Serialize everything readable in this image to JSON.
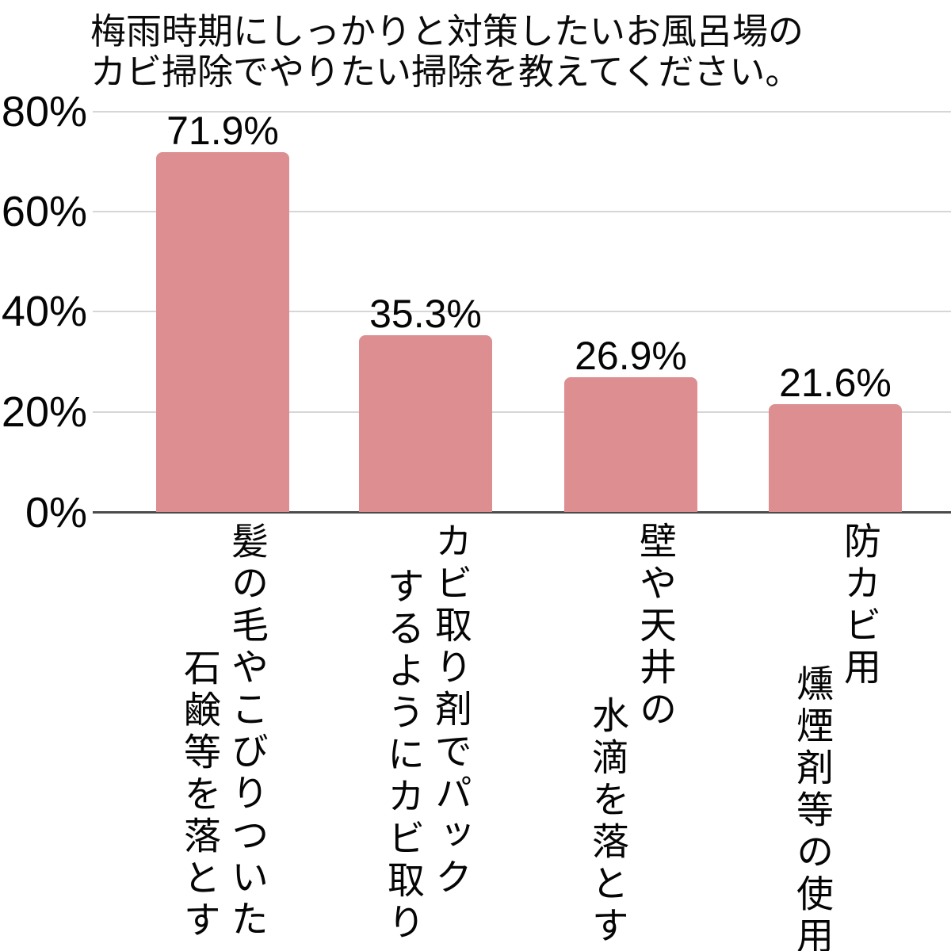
{
  "title": {
    "lines": [
      "梅雨時期にしっかりと対策したいお風呂場の",
      "カビ掃除でやりたい掃除を教えてください。"
    ],
    "full": "梅雨時期にしっかりと対策したいお風呂場のカビ掃除でやりたい掃除を教えてください。"
  },
  "y_axis": {
    "ticks": [
      "80%",
      "60%",
      "40%",
      "20%",
      "0%"
    ]
  },
  "chart_data": {
    "type": "bar",
    "title": "梅雨時期にしっかりと対策したいお風呂場のカビ掃除でやりたい掃除を教えてください。",
    "categories": [
      "髪の毛やこびりついた石鹸等を落とす",
      "カビ取り剤でパックするようにカビ取り",
      "壁や天井の水滴を落とす",
      "防カビ用燻煙剤等の使用"
    ],
    "category_columns": [
      [
        "髪の毛やこびりついた",
        "石鹸等を落とす"
      ],
      [
        "カビ取り剤でパック",
        "するようにカビ取り"
      ],
      [
        "壁や天井の",
        "水滴を落とす"
      ],
      [
        "防カビ用",
        "燻煙剤等の使用"
      ]
    ],
    "values": [
      71.9,
      35.3,
      26.9,
      21.6
    ],
    "value_labels": [
      "71.9%",
      "35.3%",
      "26.9%",
      "21.6%"
    ],
    "xlabel": "",
    "ylabel": "",
    "ylim": [
      0,
      80
    ],
    "ytick_labels": [
      "0%",
      "20%",
      "40%",
      "60%",
      "80%"
    ],
    "grid": true,
    "legend_position": "none",
    "bar_color": "#dc8e90",
    "gridline_color": "#d6d6d6",
    "axis_color": "#4b4b4b",
    "text_color": "#050505"
  }
}
